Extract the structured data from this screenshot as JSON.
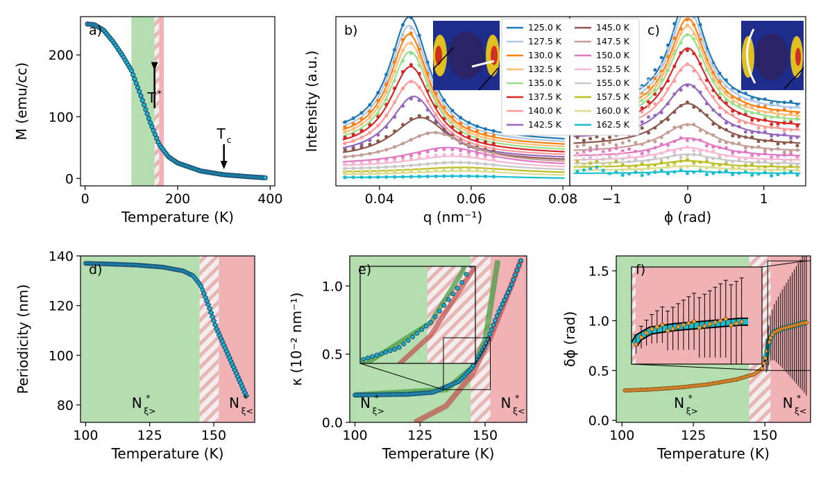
{
  "colors": {
    "green": "#b4ddb0",
    "red": "#f0b2b4",
    "marker": "#1f4e79",
    "cyan": "#17becf",
    "orange": "#f29b37",
    "fitGreen": "#3d9a3d",
    "fitRed": "#c0504d"
  },
  "chart_data": [
    {
      "id": "a",
      "type": "scatter",
      "panel_label": "a)",
      "xlabel": "Temperature (K)",
      "ylabel": "M (emu/cc)",
      "xlim": [
        -10,
        410
      ],
      "ylim": [
        -12,
        262
      ],
      "xticks": [
        0,
        200,
        400
      ],
      "yticks": [
        0,
        100,
        200
      ],
      "shaded": [
        {
          "from": 100,
          "to": 150,
          "style": "green"
        },
        {
          "from": 150,
          "to": 160,
          "style": "hatch"
        },
        {
          "from": 160,
          "to": 170,
          "style": "red"
        }
      ],
      "annotations": [
        {
          "text": "T",
          "sup": "*",
          "x": 150,
          "arrow_to_y": 175
        },
        {
          "text": "T",
          "sub": "c",
          "x": 300,
          "arrow_to_y": 15
        }
      ],
      "series": [
        {
          "name": "M(T)",
          "points": [
            [
              5,
              250
            ],
            [
              20,
              249
            ],
            [
              40,
              240
            ],
            [
              60,
              222
            ],
            [
              80,
              200
            ],
            [
              100,
              175
            ],
            [
              120,
              135
            ],
            [
              140,
              92
            ],
            [
              160,
              55
            ],
            [
              180,
              35
            ],
            [
              200,
              25
            ],
            [
              250,
              12
            ],
            [
              300,
              6
            ],
            [
              350,
              3
            ],
            [
              390,
              1
            ]
          ]
        }
      ]
    },
    {
      "id": "b",
      "type": "line",
      "panel_label": "b)",
      "xlabel": "q (nm⁻¹)",
      "ylabel": "Intensity (a.u.)",
      "xlim": [
        0.0305,
        0.0815
      ],
      "xticks": [
        0.04,
        0.06,
        0.08
      ],
      "xticklabels": [
        "0.04",
        "0.06",
        "0.08"
      ],
      "yticks": [],
      "series": [
        {
          "name": "125.0 K",
          "color": "#1f77b4",
          "peak_x": 0.0465,
          "width": 0.0052,
          "amplitude": 1.0
        },
        {
          "name": "127.5 K",
          "color": "#aec7e8",
          "peak_x": 0.0465,
          "width": 0.0052,
          "amplitude": 0.95
        },
        {
          "name": "130.0 K",
          "color": "#ff7f0e",
          "peak_x": 0.0465,
          "width": 0.0052,
          "amplitude": 0.9
        },
        {
          "name": "132.5 K",
          "color": "#ffbb78",
          "peak_x": 0.0466,
          "width": 0.0053,
          "amplitude": 0.85
        },
        {
          "name": "135.0 K",
          "color": "#98df8a",
          "peak_x": 0.0467,
          "width": 0.0054,
          "amplitude": 0.8
        },
        {
          "name": "137.5 K",
          "color": "#d62728",
          "peak_x": 0.0468,
          "width": 0.0056,
          "amplitude": 0.7
        },
        {
          "name": "140.0 K",
          "color": "#ff9896",
          "peak_x": 0.047,
          "width": 0.0058,
          "amplitude": 0.6
        },
        {
          "name": "142.5 K",
          "color": "#9467bd",
          "peak_x": 0.0475,
          "width": 0.0062,
          "amplitude": 0.5
        },
        {
          "name": "145.0 K",
          "color": "#8c564b",
          "peak_x": 0.049,
          "width": 0.0075,
          "amplitude": 0.35
        },
        {
          "name": "147.5 K",
          "color": "#c49c94",
          "peak_x": 0.052,
          "width": 0.009,
          "amplitude": 0.25
        },
        {
          "name": "150.0 K",
          "color": "#e377c2",
          "peak_x": 0.055,
          "width": 0.011,
          "amplitude": 0.15
        },
        {
          "name": "152.5 K",
          "color": "#f7b6d2",
          "peak_x": 0.056,
          "width": 0.012,
          "amplitude": 0.1
        },
        {
          "name": "155.0 K",
          "color": "#c7c7c7",
          "peak_x": 0.057,
          "width": 0.013,
          "amplitude": 0.07
        },
        {
          "name": "157.5 K",
          "color": "#bcbd22",
          "peak_x": 0.058,
          "width": 0.014,
          "amplitude": 0.05
        },
        {
          "name": "160.0 K",
          "color": "#dbdb8d",
          "peak_x": 0.058,
          "width": 0.015,
          "amplitude": 0.04
        },
        {
          "name": "162.5 K",
          "color": "#17becf",
          "peak_x": 0.058,
          "width": 0.016,
          "amplitude": 0.02
        }
      ]
    },
    {
      "id": "c",
      "type": "line",
      "panel_label": "c)",
      "xlabel": "ϕ (rad)",
      "ylabel": "",
      "xlim": [
        -1.55,
        1.55
      ],
      "xticks": [
        -1,
        0,
        1
      ],
      "xticklabels": [
        "−1",
        "0",
        "1"
      ],
      "yticks": [],
      "series_note": "same temperatures and colours as panel b, Lorentzian peaks centred at 0 rad",
      "amplitudes": [
        1.0,
        0.94,
        0.88,
        0.84,
        0.8,
        0.72,
        0.62,
        0.5,
        0.38,
        0.25,
        0.17,
        0.12,
        0.09,
        0.06,
        0.04,
        0.02
      ],
      "width": 0.28
    },
    {
      "id": "d",
      "type": "scatter",
      "panel_label": "d)",
      "xlabel": "Temperature (K)",
      "ylabel": "Periodicity (nm)",
      "xlim": [
        98,
        166
      ],
      "ylim": [
        73,
        140
      ],
      "xticks": [
        100,
        125,
        150
      ],
      "yticks": [
        80,
        100,
        120,
        140
      ],
      "shaded": [
        {
          "from": 98,
          "to": 144.5,
          "style": "green"
        },
        {
          "from": 144.5,
          "to": 152,
          "style": "hatch"
        },
        {
          "from": 152,
          "to": 166,
          "style": "red"
        }
      ],
      "region_labels": [
        {
          "base": "N",
          "sup": "*",
          "sub": "ξ>",
          "x": 120
        },
        {
          "base": "N",
          "sup": "*",
          "sub": "ξ<",
          "x": 158
        }
      ],
      "series": [
        {
          "name": "periodicity",
          "points": [
            [
              100,
              137
            ],
            [
              110,
              136.7
            ],
            [
              120,
              136.3
            ],
            [
              130,
              135.5
            ],
            [
              138,
              134
            ],
            [
              142,
              132
            ],
            [
              145,
              128
            ],
            [
              148,
              120
            ],
            [
              151,
              111
            ],
            [
              154,
              104
            ],
            [
              157,
              97
            ],
            [
              160,
              90
            ],
            [
              163,
              83
            ]
          ]
        }
      ]
    },
    {
      "id": "e",
      "type": "scatter",
      "panel_label": "e)",
      "xlabel": "Temperature (K)",
      "ylabel": "κ (10⁻² nm⁻¹)",
      "xlim": [
        98,
        166
      ],
      "ylim": [
        0,
        1.22
      ],
      "xticks": [
        100,
        125,
        150
      ],
      "yticks": [
        0.0,
        0.5,
        1.0
      ],
      "yticklabels": [
        "0.0",
        "0.5",
        "1.0"
      ],
      "shaded": [
        {
          "from": 98,
          "to": 144.5,
          "style": "green"
        },
        {
          "from": 144.5,
          "to": 152,
          "style": "hatch"
        },
        {
          "from": 152,
          "to": 166,
          "style": "red"
        }
      ],
      "region_labels": [
        {
          "base": "N",
          "sup": "*",
          "sub": "ξ>",
          "x": 104
        },
        {
          "base": "N",
          "sup": "*",
          "sub": "ξ<",
          "x": 158
        }
      ],
      "series": [
        {
          "name": "kappa",
          "points": [
            [
              100,
              0.2
            ],
            [
              120,
              0.205
            ],
            [
              130,
              0.22
            ],
            [
              140,
              0.3
            ],
            [
              145,
              0.4
            ],
            [
              150,
              0.56
            ],
            [
              155,
              0.8
            ],
            [
              160,
              1.0
            ],
            [
              164,
              1.2
            ]
          ]
        }
      ],
      "fits": [
        {
          "name": "green fit",
          "points": [
            [
              100,
              0.2
            ],
            [
              135,
              0.24
            ],
            [
              145,
              0.4
            ],
            [
              150,
              0.6
            ],
            [
              155,
              1.2
            ]
          ]
        },
        {
          "name": "red fit",
          "points": [
            [
              123,
              0
            ],
            [
              135,
              0.12
            ],
            [
              145,
              0.35
            ],
            [
              152,
              0.62
            ],
            [
              160,
              1.0
            ],
            [
              164,
              1.2
            ]
          ]
        }
      ],
      "inset_zoom": {
        "xlim": [
          134,
          152
        ],
        "ylim": [
          0.24,
          0.62
        ]
      }
    },
    {
      "id": "f",
      "type": "scatter",
      "panel_label": "f)",
      "xlabel": "Temperature (K)",
      "ylabel": "δϕ (rad)",
      "xlim": [
        98,
        166
      ],
      "ylim": [
        -0.02,
        1.65
      ],
      "xticks": [
        100,
        125,
        150
      ],
      "yticks": [
        0.0,
        0.5,
        1.0,
        1.5
      ],
      "yticklabels": [
        "0.0",
        "0.5",
        "1.0",
        "1.5"
      ],
      "shaded": [
        {
          "from": 98,
          "to": 144.5,
          "style": "green"
        },
        {
          "from": 144.5,
          "to": 152,
          "style": "hatch"
        },
        {
          "from": 152,
          "to": 166,
          "style": "red"
        }
      ],
      "region_labels": [
        {
          "base": "N",
          "sup": "*",
          "sub": "ξ>",
          "x": 120
        },
        {
          "base": "N",
          "sup": "*",
          "sub": "ξ<",
          "x": 158
        }
      ],
      "series": [
        {
          "name": "dphi",
          "points": [
            [
              101,
              0.3
            ],
            [
              110,
              0.31
            ],
            [
              120,
              0.33
            ],
            [
              130,
              0.36
            ],
            [
              140,
              0.41
            ],
            [
              146,
              0.46
            ],
            [
              149,
              0.52
            ],
            [
              150.5,
              0.65
            ],
            [
              151.5,
              0.8
            ],
            [
              153,
              0.88
            ],
            [
              156,
              0.92
            ],
            [
              160,
              0.95
            ],
            [
              164,
              0.98
            ]
          ]
        }
      ],
      "inset_zoom": {
        "xlim": [
          151,
          166
        ],
        "ylim": [
          0.5,
          1.6
        ]
      }
    }
  ]
}
